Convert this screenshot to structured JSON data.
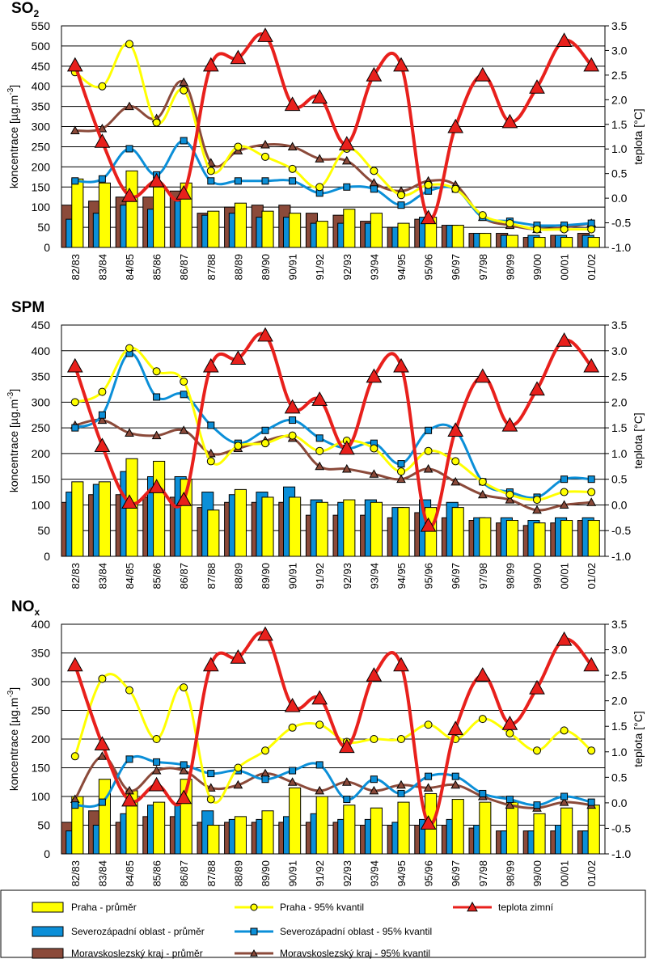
{
  "labels": {
    "ylabel_left": "koncentrace  [µg.m",
    "ylabel_left_exp": "-3",
    "ylabel_left_end": "]",
    "ylabel_right": "teplota [°C]"
  },
  "categories": [
    "82/83",
    "83/84",
    "84/85",
    "85/86",
    "86/87",
    "87/88",
    "88/89",
    "89/90",
    "90/91",
    "91/92",
    "92/93",
    "93/94",
    "94/95",
    "95/96",
    "96/97",
    "97/98",
    "98/99",
    "99/00",
    "00/01",
    "01/02"
  ],
  "temperature": [
    2.7,
    1.15,
    0.05,
    0.35,
    0.1,
    2.7,
    2.85,
    3.3,
    1.9,
    2.05,
    1.1,
    2.5,
    2.7,
    -0.4,
    1.45,
    2.5,
    1.55,
    2.25,
    3.2,
    2.7
  ],
  "legend": [
    {
      "label": "Praha - průměr",
      "type": "bar",
      "color": "#ffff00"
    },
    {
      "label": "Praha  - 95% kvantil",
      "type": "line-circle",
      "color": "#ffff00"
    },
    {
      "label": "teplota zimní",
      "type": "line-triangle",
      "color": "#e8201c"
    },
    {
      "label": "Severozápadní oblast - průměr",
      "type": "bar",
      "color": "#0b8fd8"
    },
    {
      "label": "Severozápadní oblast  - 95% kvantil",
      "type": "line-square",
      "color": "#0b8fd8"
    },
    {
      "label": "Moravskoslezský kraj - průměr",
      "type": "bar",
      "color": "#8b4a3a"
    },
    {
      "label": "Moravskoslezský kraj - 95% kvantil",
      "type": "line-triangle-small",
      "color": "#8b4a3a"
    }
  ],
  "colors": {
    "praha": "#ffff00",
    "szo": "#0b8fd8",
    "msk": "#8b4a3a",
    "temp": "#e8201c",
    "grid": "#000000"
  },
  "chart_data": [
    {
      "type": "bar",
      "title": "SO",
      "title_sub": "2",
      "ylim": [
        0,
        550
      ],
      "yticks": [
        0,
        50,
        100,
        150,
        200,
        250,
        300,
        350,
        400,
        450,
        500,
        550
      ],
      "y2lim": [
        -1.0,
        3.5
      ],
      "y2ticks": [
        "-1.0",
        "-0.5",
        "0.0",
        "0.5",
        "1.0",
        "1.5",
        "2.0",
        "2.5",
        "3.0",
        "3.5"
      ],
      "series": [
        {
          "name": "Moravskoslezský kraj - průměr",
          "values": [
            105,
            115,
            125,
            125,
            140,
            85,
            100,
            105,
            105,
            85,
            80,
            65,
            50,
            70,
            55,
            35,
            35,
            25,
            30,
            35
          ]
        },
        {
          "name": "Severozápadní oblast - průměr",
          "values": [
            70,
            85,
            105,
            95,
            115,
            80,
            85,
            75,
            75,
            60,
            60,
            60,
            50,
            75,
            55,
            35,
            30,
            30,
            30,
            30
          ]
        },
        {
          "name": "Praha - průměr",
          "values": [
            170,
            160,
            190,
            150,
            160,
            90,
            110,
            90,
            85,
            65,
            95,
            85,
            60,
            75,
            55,
            35,
            30,
            25,
            25,
            25
          ]
        },
        {
          "name": "Moravskoslezský kraj - 95% kvantil",
          "values": [
            290,
            295,
            350,
            320,
            410,
            210,
            240,
            255,
            250,
            220,
            215,
            160,
            140,
            165,
            155,
            75,
            55,
            45,
            50,
            60
          ]
        },
        {
          "name": "Severozápadní oblast  - 95% kvantil",
          "values": [
            165,
            170,
            245,
            180,
            265,
            165,
            165,
            165,
            165,
            135,
            150,
            145,
            105,
            140,
            145,
            75,
            65,
            55,
            55,
            60
          ]
        },
        {
          "name": "Praha  - 95% kvantil",
          "values": [
            435,
            400,
            505,
            310,
            390,
            190,
            250,
            225,
            195,
            150,
            245,
            190,
            130,
            155,
            145,
            80,
            60,
            45,
            45,
            45
          ]
        }
      ]
    },
    {
      "type": "bar",
      "title": "SPM",
      "title_sub": "",
      "ylim": [
        0,
        450
      ],
      "yticks": [
        0,
        50,
        100,
        150,
        200,
        250,
        300,
        350,
        400,
        450
      ],
      "y2lim": [
        -1.0,
        3.5
      ],
      "y2ticks": [
        "-1.0",
        "-0.5",
        "0.0",
        "0.5",
        "1.0",
        "1.5",
        "2.0",
        "2.5",
        "3.0",
        "3.5"
      ],
      "series": [
        {
          "name": "Moravskoslezský kraj - průměr",
          "values": [
            105,
            120,
            120,
            115,
            115,
            95,
            105,
            105,
            105,
            80,
            80,
            80,
            75,
            85,
            75,
            70,
            65,
            60,
            65,
            70
          ]
        },
        {
          "name": "Severozápadní oblast - průměr",
          "values": [
            125,
            140,
            165,
            155,
            155,
            125,
            120,
            125,
            135,
            110,
            105,
            110,
            95,
            110,
            105,
            75,
            75,
            70,
            75,
            75
          ]
        },
        {
          "name": "Praha - průměr",
          "values": [
            145,
            145,
            190,
            185,
            150,
            90,
            130,
            115,
            115,
            105,
            110,
            105,
            95,
            95,
            95,
            75,
            70,
            65,
            70,
            70
          ]
        },
        {
          "name": "Moravskoslezský kraj - 95% kvantil",
          "values": [
            255,
            265,
            240,
            235,
            245,
            200,
            210,
            225,
            230,
            175,
            170,
            160,
            150,
            170,
            145,
            120,
            110,
            90,
            100,
            105
          ]
        },
        {
          "name": "Severozápadní oblast  - 95% kvantil",
          "values": [
            250,
            275,
            395,
            310,
            315,
            255,
            220,
            245,
            265,
            230,
            210,
            220,
            180,
            245,
            245,
            145,
            125,
            115,
            150,
            150
          ]
        },
        {
          "name": "Praha  - 95% kvantil",
          "values": [
            300,
            320,
            405,
            360,
            340,
            185,
            215,
            220,
            235,
            205,
            225,
            210,
            165,
            205,
            185,
            145,
            120,
            110,
            125,
            125
          ]
        }
      ]
    },
    {
      "type": "bar",
      "title": "NO",
      "title_sub": "x",
      "ylim": [
        0,
        400
      ],
      "yticks": [
        0,
        50,
        100,
        150,
        200,
        250,
        300,
        350,
        400
      ],
      "y2lim": [
        -1.0,
        3.5
      ],
      "y2ticks": [
        "-1.0",
        "-0.5",
        "0.0",
        "0.5",
        "1.0",
        "1.5",
        "2.0",
        "2.5",
        "3.0",
        "3.5"
      ],
      "series": [
        {
          "name": "Moravskoslezský kraj - průměr",
          "values": [
            55,
            75,
            55,
            65,
            65,
            55,
            55,
            55,
            55,
            55,
            55,
            50,
            50,
            50,
            50,
            45,
            40,
            40,
            40,
            40
          ]
        },
        {
          "name": "Severozápadní oblast - průměr",
          "values": [
            40,
            50,
            70,
            85,
            85,
            75,
            60,
            60,
            65,
            70,
            60,
            60,
            55,
            60,
            60,
            50,
            40,
            40,
            50,
            40
          ]
        },
        {
          "name": "Praha - průměr",
          "values": [
            100,
            130,
            110,
            90,
            130,
            50,
            65,
            75,
            115,
            100,
            85,
            80,
            90,
            105,
            95,
            90,
            90,
            70,
            80,
            85
          ]
        },
        {
          "name": "Moravskoslezský kraj - 95% kvantil",
          "values": [
            95,
            170,
            110,
            145,
            145,
            115,
            120,
            140,
            125,
            110,
            125,
            110,
            120,
            115,
            120,
            100,
            85,
            80,
            90,
            85
          ]
        },
        {
          "name": "Severozápadní oblast  - 95% kvantil",
          "values": [
            85,
            90,
            165,
            160,
            155,
            140,
            145,
            130,
            145,
            155,
            95,
            130,
            105,
            135,
            135,
            105,
            95,
            85,
            100,
            90
          ]
        },
        {
          "name": "Praha  - 95% kvantil",
          "values": [
            170,
            305,
            285,
            200,
            290,
            95,
            150,
            180,
            220,
            225,
            195,
            200,
            200,
            225,
            200,
            235,
            210,
            180,
            215,
            180
          ]
        }
      ]
    }
  ]
}
